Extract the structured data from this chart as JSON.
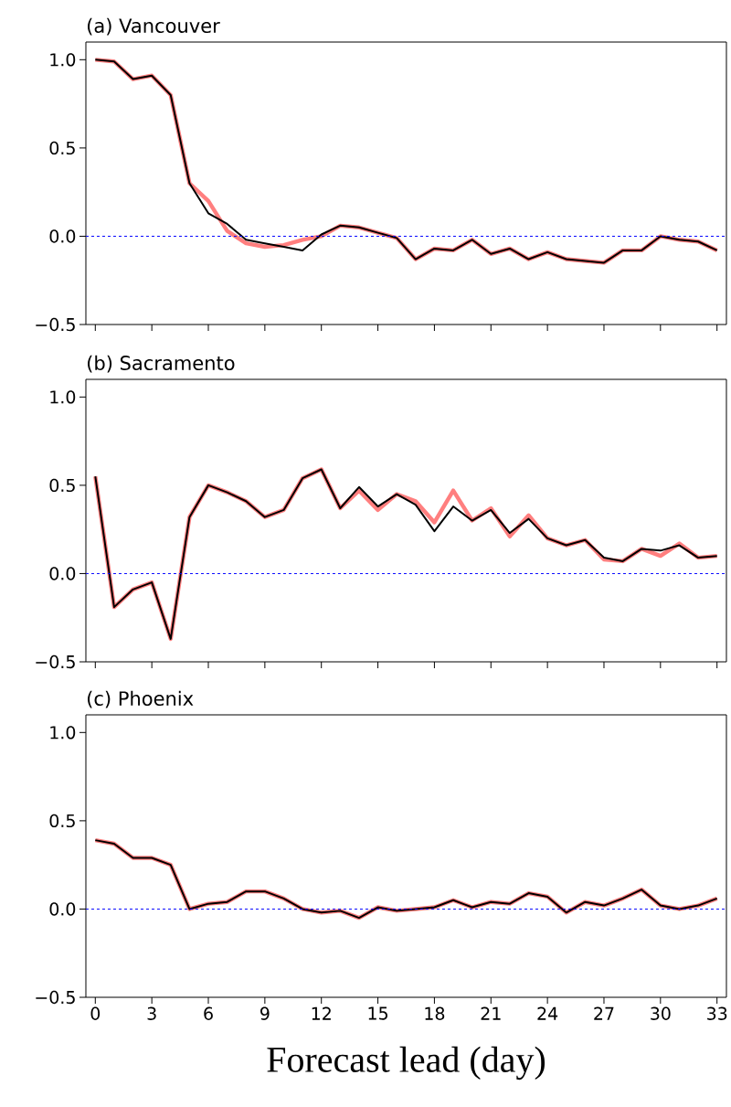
{
  "chart_data": [
    {
      "type": "line",
      "title": "(a) Vancouver",
      "x": [
        0,
        1,
        2,
        3,
        4,
        5,
        6,
        7,
        8,
        9,
        10,
        11,
        12,
        13,
        14,
        15,
        16,
        17,
        18,
        19,
        20,
        21,
        22,
        23,
        24,
        25,
        26,
        27,
        28,
        29,
        30,
        31,
        32,
        33
      ],
      "xlim": [
        -0.5,
        33.5
      ],
      "xticks": [
        0,
        3,
        6,
        9,
        12,
        15,
        18,
        21,
        24,
        27,
        30,
        33
      ],
      "ylim": [
        -0.5,
        1.1
      ],
      "yticks": [
        {
          "value": -0.5,
          "label": "−0.5"
        },
        {
          "value": 0,
          "label": "0.0"
        },
        {
          "value": 0.5,
          "label": "0.5"
        },
        {
          "value": 1.0,
          "label": "1.0"
        }
      ],
      "tick_labels": "y",
      "series": [
        {
          "color": "#000000",
          "values": [
            1.0,
            0.99,
            0.89,
            0.91,
            0.8,
            0.3,
            0.13,
            0.07,
            -0.02,
            -0.04,
            -0.06,
            -0.08,
            0.01,
            0.06,
            0.05,
            0.02,
            -0.01,
            -0.13,
            -0.07,
            -0.08,
            -0.02,
            -0.1,
            -0.07,
            -0.13,
            -0.09,
            -0.13,
            -0.14,
            -0.15,
            -0.08,
            -0.08,
            0.0,
            -0.02,
            -0.03,
            -0.08
          ]
        },
        {
          "color": "#ff0000",
          "values": [
            1.0,
            0.99,
            0.89,
            0.91,
            0.8,
            0.3,
            0.2,
            0.03,
            -0.04,
            -0.06,
            -0.05,
            -0.02,
            0.0,
            0.06,
            0.05,
            0.02,
            -0.01,
            -0.13,
            -0.07,
            -0.08,
            -0.02,
            -0.1,
            -0.07,
            -0.13,
            -0.09,
            -0.13,
            -0.14,
            -0.15,
            -0.08,
            -0.08,
            0.0,
            -0.02,
            -0.03,
            -0.08
          ]
        }
      ],
      "ref_lines": [
        {
          "axis": "y",
          "value": 0,
          "color": "#0000ff",
          "line_style": "dashed"
        }
      ]
    },
    {
      "type": "line",
      "title": "(b) Sacramento",
      "x": [
        0,
        1,
        2,
        3,
        4,
        5,
        6,
        7,
        8,
        9,
        10,
        11,
        12,
        13,
        14,
        15,
        16,
        17,
        18,
        19,
        20,
        21,
        22,
        23,
        24,
        25,
        26,
        27,
        28,
        29,
        30,
        31,
        32,
        33
      ],
      "xlim": [
        -0.5,
        33.5
      ],
      "xticks": [
        0,
        3,
        6,
        9,
        12,
        15,
        18,
        21,
        24,
        27,
        30,
        33
      ],
      "ylim": [
        -0.5,
        1.1
      ],
      "yticks": [
        {
          "value": -0.5,
          "label": "−0.5"
        },
        {
          "value": 0,
          "label": "0.0"
        },
        {
          "value": 0.5,
          "label": "0.5"
        },
        {
          "value": 1.0,
          "label": "1.0"
        }
      ],
      "tick_labels": "y",
      "series": [
        {
          "color": "#000000",
          "values": [
            0.55,
            -0.19,
            -0.09,
            -0.05,
            -0.37,
            0.32,
            0.5,
            0.46,
            0.41,
            0.32,
            0.36,
            0.54,
            0.59,
            0.37,
            0.49,
            0.38,
            0.45,
            0.39,
            0.24,
            0.38,
            0.3,
            0.36,
            0.23,
            0.31,
            0.2,
            0.16,
            0.19,
            0.09,
            0.07,
            0.14,
            0.13,
            0.16,
            0.09,
            0.1
          ]
        },
        {
          "color": "#ff0000",
          "values": [
            0.55,
            -0.19,
            -0.09,
            -0.05,
            -0.37,
            0.32,
            0.5,
            0.46,
            0.41,
            0.32,
            0.36,
            0.54,
            0.59,
            0.37,
            0.47,
            0.36,
            0.45,
            0.41,
            0.29,
            0.47,
            0.3,
            0.37,
            0.21,
            0.33,
            0.2,
            0.16,
            0.19,
            0.08,
            0.07,
            0.14,
            0.1,
            0.17,
            0.09,
            0.1
          ]
        }
      ],
      "ref_lines": [
        {
          "axis": "y",
          "value": 0,
          "color": "#0000ff",
          "line_style": "dashed"
        }
      ]
    },
    {
      "type": "line",
      "title": "(c) Phoenix",
      "xlabel": "Forecast lead (day)",
      "x": [
        0,
        1,
        2,
        3,
        4,
        5,
        6,
        7,
        8,
        9,
        10,
        11,
        12,
        13,
        14,
        15,
        16,
        17,
        18,
        19,
        20,
        21,
        22,
        23,
        24,
        25,
        26,
        27,
        28,
        29,
        30,
        31,
        32,
        33
      ],
      "xlim": [
        -0.5,
        33.5
      ],
      "xticks": [
        0,
        3,
        6,
        9,
        12,
        15,
        18,
        21,
        24,
        27,
        30,
        33
      ],
      "ylim": [
        -0.5,
        1.1
      ],
      "yticks": [
        {
          "value": -0.5,
          "label": "−0.5"
        },
        {
          "value": 0,
          "label": "0.0"
        },
        {
          "value": 0.5,
          "label": "0.5"
        },
        {
          "value": 1.0,
          "label": "1.0"
        }
      ],
      "series": [
        {
          "color": "#000000",
          "values": [
            0.39,
            0.37,
            0.29,
            0.29,
            0.25,
            0.0,
            0.03,
            0.04,
            0.1,
            0.1,
            0.06,
            0.0,
            -0.02,
            -0.01,
            -0.05,
            0.01,
            -0.01,
            0.0,
            0.01,
            0.05,
            0.01,
            0.04,
            0.03,
            0.09,
            0.07,
            -0.02,
            0.04,
            0.02,
            0.06,
            0.11,
            0.02,
            0.0,
            0.02,
            0.06
          ]
        },
        {
          "color": "#ff0000",
          "values": [
            0.39,
            0.37,
            0.29,
            0.29,
            0.25,
            0.0,
            0.03,
            0.04,
            0.1,
            0.1,
            0.06,
            0.0,
            -0.02,
            -0.01,
            -0.05,
            0.01,
            -0.01,
            0.0,
            0.01,
            0.05,
            0.01,
            0.04,
            0.03,
            0.09,
            0.07,
            -0.02,
            0.04,
            0.02,
            0.06,
            0.11,
            0.02,
            0.0,
            0.02,
            0.06
          ]
        }
      ],
      "ref_lines": [
        {
          "axis": "y",
          "value": 0,
          "color": "#0000ff",
          "line_style": "dashed"
        }
      ]
    }
  ]
}
